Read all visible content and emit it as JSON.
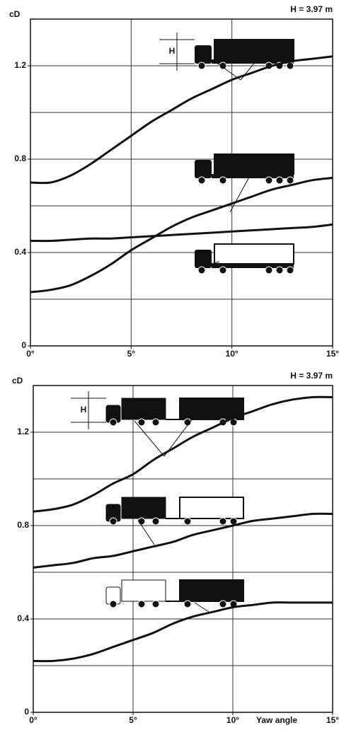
{
  "chart_data": [
    {
      "type": "line",
      "annotation": "H = 3.97 m",
      "ylabel": "cD",
      "height_label": "H",
      "x": [
        0,
        1,
        2,
        3,
        4,
        5,
        6,
        7,
        8,
        9,
        10,
        11,
        12,
        13,
        14,
        15
      ],
      "series": [
        {
          "color": "#111111",
          "values": [
            0.7,
            0.7,
            0.73,
            0.78,
            0.84,
            0.9,
            0.96,
            1.01,
            1.06,
            1.1,
            1.14,
            1.17,
            1.2,
            1.22,
            1.23,
            1.24
          ]
        },
        {
          "color": "#111111",
          "values": [
            0.23,
            0.24,
            0.26,
            0.3,
            0.35,
            0.41,
            0.46,
            0.51,
            0.55,
            0.58,
            0.61,
            0.64,
            0.67,
            0.69,
            0.71,
            0.72
          ]
        },
        {
          "color": "#111111",
          "values": [
            0.45,
            0.45,
            0.455,
            0.46,
            0.46,
            0.465,
            0.47,
            0.475,
            0.48,
            0.485,
            0.49,
            0.495,
            0.5,
            0.505,
            0.51,
            0.52
          ]
        }
      ],
      "xlim": [
        0,
        15
      ],
      "ylim": [
        0,
        1.4
      ],
      "xticks": [
        {
          "value": 0,
          "label": "0°"
        },
        {
          "value": 5,
          "label": "5°"
        },
        {
          "value": 10,
          "label": "10°"
        },
        {
          "value": 15,
          "label": "15°"
        }
      ],
      "yticks": [
        0,
        0.4,
        0.8,
        1.2
      ],
      "ygrid": [
        0.2,
        0.4,
        0.6,
        0.8,
        1.0,
        1.2
      ],
      "xgrid": [
        5,
        10
      ]
    },
    {
      "type": "line",
      "annotation": "H = 3.97 m",
      "ylabel": "cD",
      "height_label": "H",
      "xlabel": "Yaw angle",
      "x": [
        0,
        1,
        2,
        3,
        4,
        5,
        6,
        7,
        8,
        9,
        10,
        11,
        12,
        13,
        14,
        15
      ],
      "series": [
        {
          "color": "#111111",
          "values": [
            0.86,
            0.87,
            0.89,
            0.93,
            0.98,
            1.02,
            1.08,
            1.13,
            1.18,
            1.22,
            1.26,
            1.29,
            1.32,
            1.34,
            1.35,
            1.35
          ]
        },
        {
          "color": "#111111",
          "values": [
            0.62,
            0.63,
            0.64,
            0.66,
            0.67,
            0.69,
            0.71,
            0.73,
            0.76,
            0.78,
            0.8,
            0.82,
            0.83,
            0.84,
            0.85,
            0.85
          ]
        },
        {
          "color": "#111111",
          "values": [
            0.22,
            0.22,
            0.23,
            0.25,
            0.28,
            0.31,
            0.34,
            0.38,
            0.41,
            0.43,
            0.45,
            0.46,
            0.47,
            0.47,
            0.47,
            0.47
          ]
        }
      ],
      "xlim": [
        0,
        15
      ],
      "ylim": [
        0,
        1.4
      ],
      "xticks": [
        {
          "value": 0,
          "label": "0°"
        },
        {
          "value": 5,
          "label": "5°"
        },
        {
          "value": 10,
          "label": "10°"
        },
        {
          "value": 15,
          "label": "15°"
        }
      ],
      "yticks": [
        0,
        0.4,
        0.8,
        1.2
      ],
      "ygrid": [
        0.2,
        0.4,
        0.6,
        0.8,
        1.0,
        1.2
      ],
      "xgrid": [
        5,
        10
      ]
    }
  ]
}
